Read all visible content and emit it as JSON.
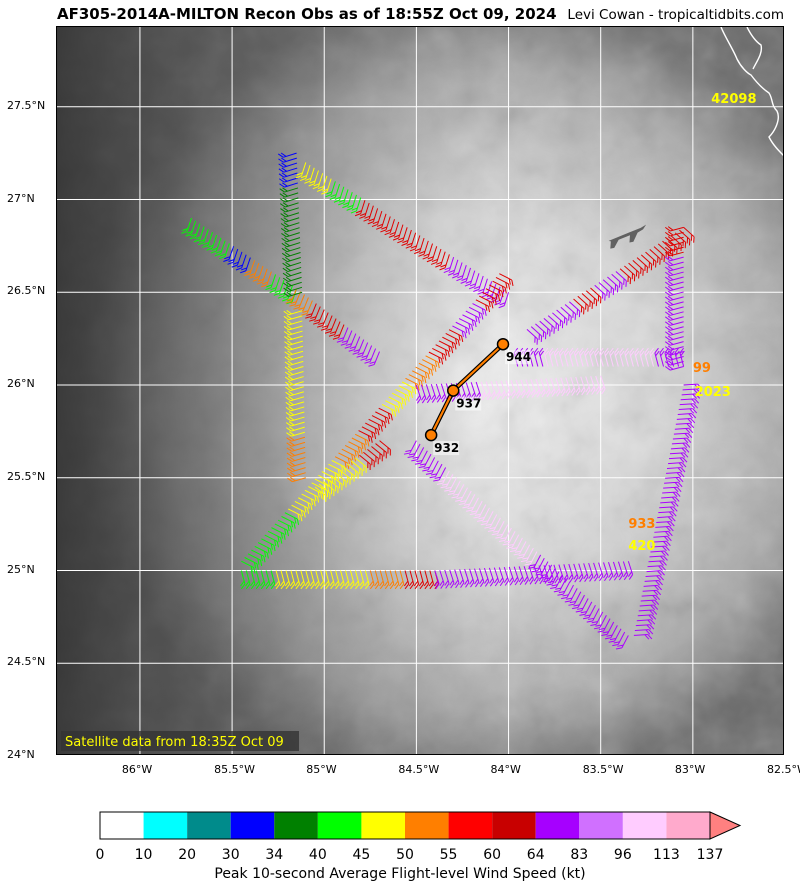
{
  "header": {
    "title": "AF305-2014A-MILTON Recon Obs as of 18:55Z Oct 09, 2024",
    "credit": "Levi Cowan - tropicaltidbits.com"
  },
  "map": {
    "satellite_note": "Satellite data from 18:35Z Oct 09",
    "lon_labels": [
      "86°W",
      "85.5°W",
      "85°W",
      "84.5°W",
      "84°W",
      "83.5°W",
      "83°W",
      "82.5°W"
    ],
    "lat_labels": [
      "24°N",
      "24.5°N",
      "25°N",
      "25.5°N",
      "26°N",
      "26.5°N",
      "27°N",
      "27.5°N"
    ],
    "lon_range": [
      -86.45,
      -82.5
    ],
    "lat_range": [
      24.0,
      27.93
    ],
    "pressure_points": [
      {
        "label": "932",
        "lon": -84.42,
        "lat": 25.73
      },
      {
        "label": "937",
        "lon": -84.3,
        "lat": 25.97
      },
      {
        "label": "944",
        "lon": -84.03,
        "lat": 26.22
      }
    ],
    "station_labels": [
      {
        "text": "42098",
        "lon": -82.9,
        "lat": 27.52,
        "color": "#ffff00"
      },
      {
        "text": "99",
        "lon": -83.0,
        "lat": 26.07,
        "color": "#ff7f00"
      },
      {
        "text": "2023",
        "lon": -82.99,
        "lat": 25.94,
        "color": "#ffff00"
      },
      {
        "text": "933",
        "lon": -83.35,
        "lat": 25.23,
        "color": "#ff7f00"
      },
      {
        "text": "420",
        "lon": -83.35,
        "lat": 25.11,
        "color": "#ffff00"
      }
    ]
  },
  "colorbar": {
    "label": "Peak 10-second Average Flight-level Wind Speed (kt)",
    "ticks": [
      "0",
      "10",
      "20",
      "30",
      "34",
      "40",
      "45",
      "50",
      "55",
      "60",
      "64",
      "83",
      "96",
      "113",
      "137"
    ],
    "colors": [
      "#ffffff",
      "#00ffff",
      "#008b8b",
      "#0000ff",
      "#008000",
      "#00ff00",
      "#ffff00",
      "#ff7f00",
      "#ff0000",
      "#c80000",
      "#a600ff",
      "#d070ff",
      "#ffccff",
      "#ffaacc"
    ],
    "extend_color": "#ff8080"
  },
  "legend_colors": {
    "purple": "#aa00ff",
    "pink": "#ffccff",
    "red": "#e00000",
    "orange": "#ff7f00",
    "yellow": "#ffff00",
    "green": "#00ff00",
    "darkgreen": "#008000",
    "blue": "#0000ff",
    "cyan": "#00ffff"
  }
}
